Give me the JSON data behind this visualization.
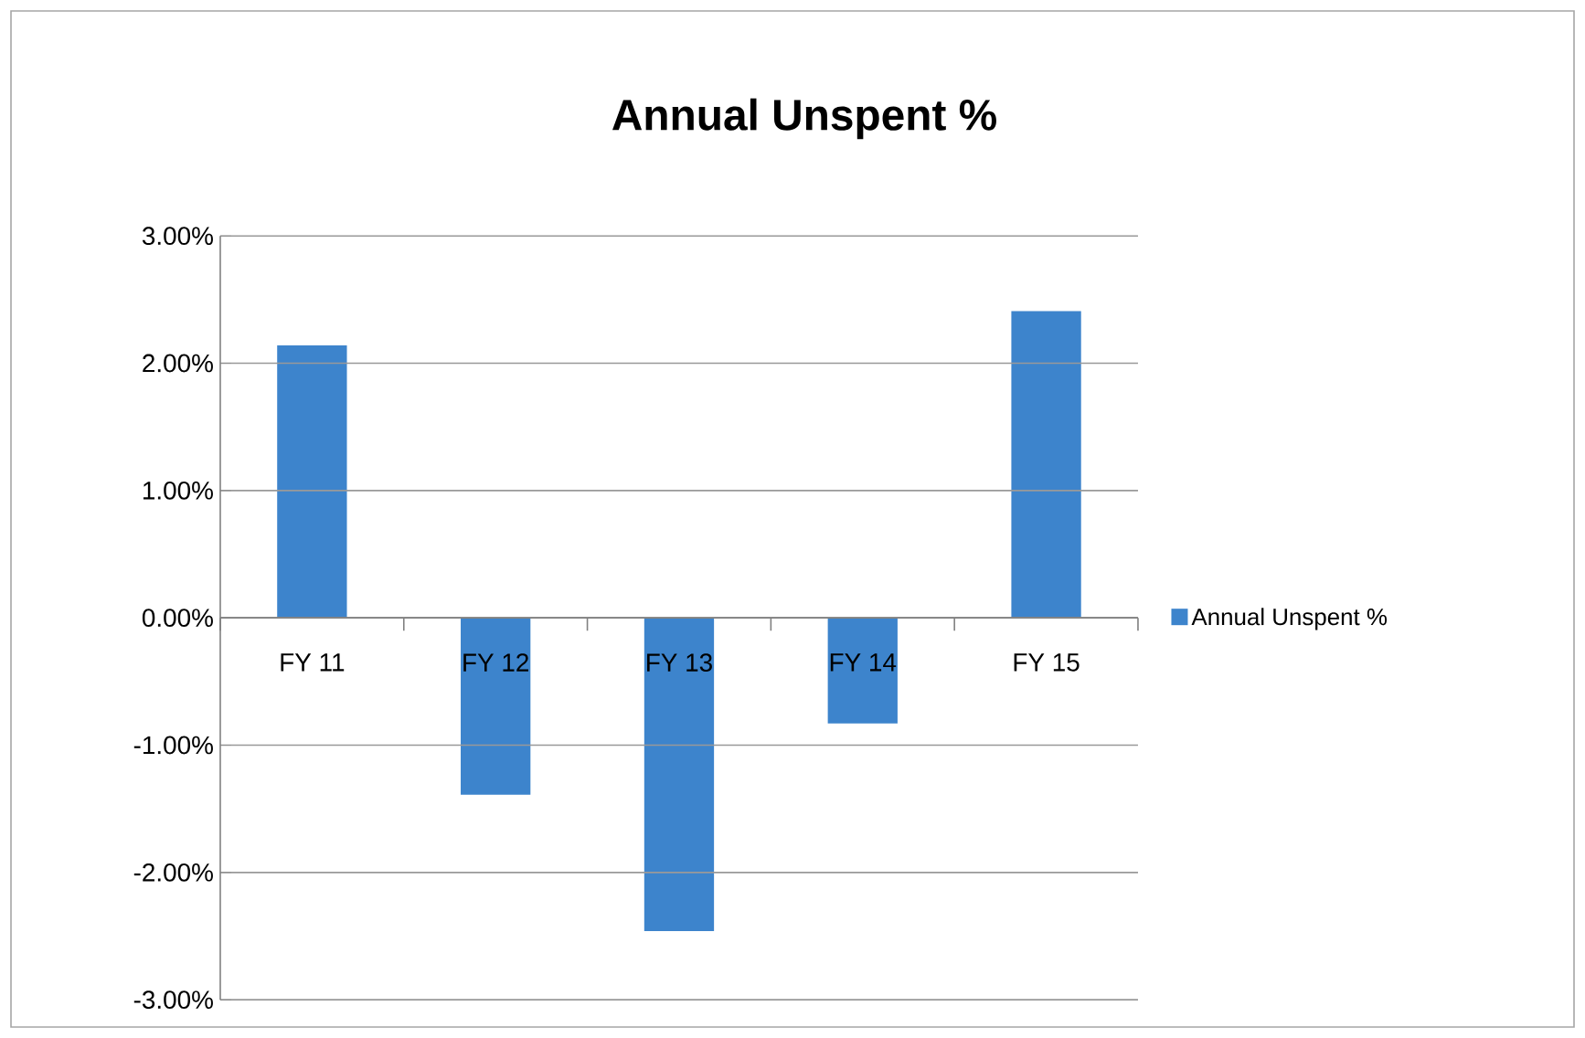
{
  "chart_data": {
    "type": "bar",
    "title": "Annual Unspent %",
    "categories": [
      "FY 11",
      "FY 12",
      "FY 13",
      "FY 14",
      "FY 15"
    ],
    "series": [
      {
        "name": "Annual Unspent %",
        "color": "#3d84cc",
        "values": [
          2.14,
          -1.39,
          -2.46,
          -0.83,
          2.41
        ]
      }
    ],
    "ylim": [
      -3,
      3
    ],
    "yticks": [
      {
        "value": -3,
        "label": "-3.00%"
      },
      {
        "value": -2,
        "label": "-2.00%"
      },
      {
        "value": -1,
        "label": "-1.00%"
      },
      {
        "value": 0,
        "label": "0.00%"
      },
      {
        "value": 1,
        "label": "1.00%"
      },
      {
        "value": 2,
        "label": "2.00%"
      },
      {
        "value": 3,
        "label": "3.00%"
      }
    ],
    "grid": "y",
    "legend": "right"
  }
}
